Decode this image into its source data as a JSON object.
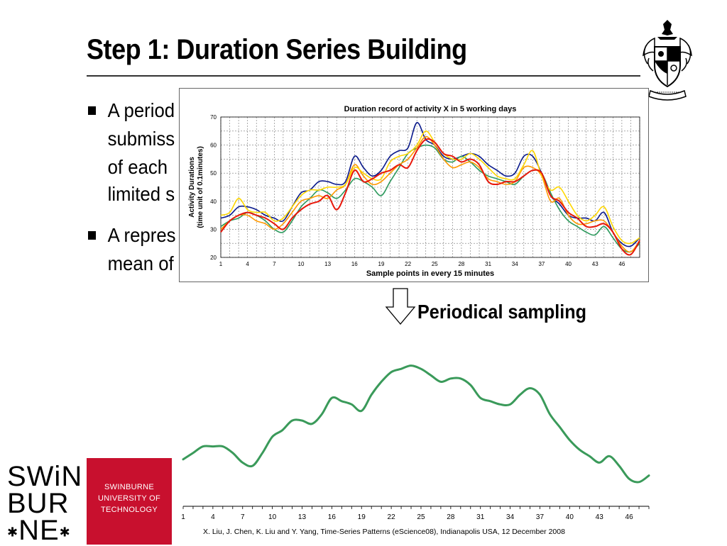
{
  "slide": {
    "title": "Step 1: Duration Series Building",
    "bullets": [
      {
        "lines": [
          "A period",
          "submiss",
          "of each",
          "limited s"
        ]
      },
      {
        "lines": [
          "A repres",
          "mean of"
        ]
      }
    ],
    "arrow_label": "Periodical sampling",
    "footer": "X. Liu, J. Chen, K. Liu and Y. Yang, Time-Series Patterns (eScience08), Indianapolis USA, 12 December 2008"
  },
  "logo": {
    "left_lines": [
      "SWiNBUR",
      "NE"
    ],
    "left_top": "SWiN",
    "left_mid": "BUR",
    "left_bot": "NE",
    "right_lines": [
      "SWINBURNE",
      "UNIVERSITY OF",
      "TECHNOLOGY"
    ],
    "brand_color": "#c8102e"
  },
  "chart_data": [
    {
      "type": "line",
      "title": "Duration record of activity X in 5 working days",
      "xlabel": "Sample points in every 15 minutes",
      "ylabel": "Activity Durations (time unit of 0.1minutes)",
      "ylabel_lines": [
        "Activity Durations",
        "(time unit of 0.1minutes)"
      ],
      "ylim": [
        20,
        70
      ],
      "yticks": [
        20,
        30,
        40,
        50,
        60,
        70
      ],
      "xticks": [
        1,
        4,
        7,
        10,
        13,
        16,
        19,
        22,
        25,
        28,
        31,
        34,
        37,
        40,
        43,
        46
      ],
      "grid": true,
      "x": [
        1,
        2,
        3,
        4,
        5,
        6,
        7,
        8,
        9,
        10,
        11,
        12,
        13,
        14,
        15,
        16,
        17,
        18,
        19,
        20,
        21,
        22,
        23,
        24,
        25,
        26,
        27,
        28,
        29,
        30,
        31,
        32,
        33,
        34,
        35,
        36,
        37,
        38,
        39,
        40,
        41,
        42,
        43,
        44,
        45,
        46,
        47,
        48
      ],
      "series": [
        {
          "color": "#0a1a8c",
          "values": [
            34,
            35,
            38,
            38,
            37,
            35,
            34,
            33,
            38,
            43,
            44,
            47,
            47,
            46,
            47,
            56,
            52,
            49,
            51,
            56,
            58,
            59,
            68,
            62,
            60,
            56,
            55,
            56,
            57,
            56,
            53,
            51,
            49,
            50,
            56,
            56,
            50,
            42,
            39,
            35,
            34,
            34,
            33,
            36,
            29,
            25,
            24,
            27
          ]
        },
        {
          "color": "#2e9a5e",
          "values": [
            31,
            33,
            34,
            36,
            35,
            33,
            30,
            29,
            33,
            38,
            41,
            44,
            43,
            41,
            44,
            48,
            47,
            45,
            42,
            47,
            52,
            57,
            59,
            60,
            59,
            55,
            54,
            56,
            54,
            51,
            49,
            48,
            47,
            46,
            49,
            51,
            50,
            43,
            37,
            33,
            31,
            29,
            28,
            31,
            27,
            23,
            22,
            25
          ]
        },
        {
          "color": "#ff9900",
          "values": [
            30,
            33,
            35,
            35,
            33,
            32,
            30,
            32,
            36,
            40,
            41,
            42,
            41,
            44,
            46,
            53,
            49,
            46,
            47,
            50,
            53,
            55,
            59,
            63,
            60,
            55,
            52,
            53,
            54,
            52,
            48,
            47,
            46,
            47,
            52,
            52,
            49,
            40,
            41,
            35,
            32,
            32,
            33,
            33,
            29,
            24,
            22,
            26
          ]
        },
        {
          "color": "#ffd700",
          "values": [
            35,
            36,
            41,
            37,
            36,
            36,
            33,
            34,
            38,
            42,
            44,
            44,
            45,
            45,
            46,
            52,
            50,
            48,
            48,
            54,
            56,
            57,
            60,
            65,
            61,
            57,
            55,
            55,
            57,
            55,
            52,
            49,
            48,
            48,
            53,
            58,
            49,
            44,
            45,
            40,
            35,
            33,
            35,
            38,
            31,
            26,
            25,
            27
          ]
        },
        {
          "color": "#e8170a",
          "values": [
            29,
            33,
            35,
            36,
            35,
            34,
            32,
            30,
            34,
            37,
            39,
            40,
            42,
            37,
            43,
            51,
            47,
            48,
            50,
            51,
            53,
            52,
            58,
            62,
            61,
            57,
            56,
            54,
            55,
            53,
            47,
            46,
            47,
            47,
            49,
            51,
            50,
            42,
            40,
            36,
            34,
            31,
            31,
            32,
            29,
            23,
            21,
            26
          ]
        }
      ]
    },
    {
      "type": "line",
      "xticks": [
        1,
        4,
        7,
        10,
        13,
        16,
        19,
        22,
        25,
        28,
        31,
        34,
        37,
        40,
        43,
        46
      ],
      "ylim": [
        20,
        70
      ],
      "x": [
        1,
        2,
        3,
        4,
        5,
        6,
        7,
        8,
        9,
        10,
        11,
        12,
        13,
        14,
        15,
        16,
        17,
        18,
        19,
        20,
        21,
        22,
        23,
        24,
        25,
        26,
        27,
        28,
        29,
        30,
        31,
        32,
        33,
        34,
        35,
        36,
        37,
        38,
        39,
        40,
        41,
        42,
        43,
        44,
        45,
        46,
        47,
        48
      ],
      "series": [
        {
          "color": "#3a9a5a",
          "values": [
            31,
            33,
            35,
            35,
            35,
            33,
            30,
            29,
            33,
            38,
            40,
            43,
            43,
            42,
            45,
            50,
            49,
            48,
            46,
            51,
            55,
            58,
            59,
            60,
            59,
            57,
            55,
            56,
            56,
            54,
            50,
            49,
            48,
            48,
            51,
            53,
            51,
            45,
            41,
            37,
            34,
            32,
            30,
            32,
            29,
            25,
            24,
            26
          ]
        }
      ]
    }
  ]
}
